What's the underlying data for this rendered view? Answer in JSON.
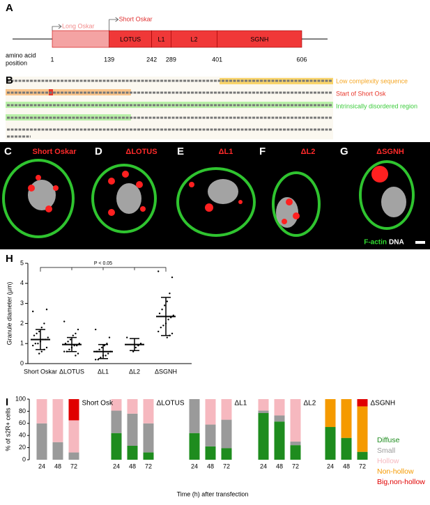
{
  "panel_labels": [
    "A",
    "B",
    "C",
    "D",
    "E",
    "F",
    "G",
    "H",
    "I"
  ],
  "domain_map": {
    "isoforms": [
      "Long Oskar",
      "Short Oskar"
    ],
    "domains": [
      "LOTUS",
      "L1",
      "L2",
      "SGNH"
    ],
    "positions": [
      1,
      139,
      242,
      289,
      401,
      606
    ],
    "position_label": [
      "amino acid",
      "position"
    ]
  },
  "sequence_legend": [
    {
      "label": "Low complexity sequence",
      "color": "#f5a623"
    },
    {
      "label": "Start of Short Osk",
      "color": "#e8362a"
    },
    {
      "label": "Intrinsically disordered region",
      "color": "#3ccc3c"
    }
  ],
  "micrographs": {
    "titles": [
      "Short Oskar",
      "ΔLOTUS",
      "ΔL1",
      "ΔL2",
      "ΔSGNH"
    ],
    "stains": [
      "F-actin",
      "DNA"
    ]
  },
  "chart_data": [
    {
      "type": "scatter",
      "categories": [
        "Short Oskar",
        "ΔLOTUS",
        "ΔL1",
        "ΔL2",
        "ΔSGNH"
      ],
      "points": [
        [
          2.6,
          2.7,
          2.0,
          1.8,
          1.6,
          1.5,
          1.4,
          1.3,
          1.2,
          1.2,
          1.1,
          1.0,
          1.0,
          0.9,
          0.8,
          0.7,
          0.6,
          0.5
        ],
        [
          2.1,
          1.7,
          1.5,
          1.4,
          1.2,
          1.1,
          1.0,
          1.0,
          0.9,
          0.9,
          0.8,
          0.7,
          0.6,
          0.6,
          0.5,
          0.4
        ],
        [
          1.7,
          1.3,
          1.0,
          0.9,
          0.8,
          0.7,
          0.6,
          0.6,
          0.5,
          0.4,
          0.4,
          0.3,
          0.2,
          0.2
        ],
        [
          1.3,
          1.0,
          0.9,
          0.8,
          0.6
        ],
        [
          4.6,
          4.3,
          3.5,
          3.1,
          2.9,
          2.7,
          2.5,
          2.4,
          2.3,
          2.2,
          2.0,
          1.9,
          1.8,
          1.6,
          1.5,
          1.4,
          1.3
        ]
      ],
      "means": [
        1.2,
        0.95,
        0.6,
        0.95,
        2.35
      ],
      "sd": [
        0.5,
        0.35,
        0.35,
        0.3,
        0.95
      ],
      "ylabel": "Granule diameter (μm)",
      "ylim": [
        0,
        5
      ],
      "yticks": [
        0,
        1,
        2,
        3,
        4,
        5
      ],
      "annotation": "P < 0.05",
      "color": "#000000"
    },
    {
      "type": "bar",
      "stacked": true,
      "groups": [
        "Short Osk",
        "ΔLOTUS",
        "ΔL1",
        "ΔL2",
        "ΔSGNH"
      ],
      "categories": [
        "24",
        "48",
        "72",
        "24",
        "48",
        "72",
        "24",
        "48",
        "72",
        "24",
        "48",
        "72",
        "24",
        "48",
        "72"
      ],
      "series": [
        {
          "name": "Diffuse",
          "color": "#1e8c1e",
          "values": [
            0,
            0,
            0,
            44,
            23,
            12,
            44,
            22,
            19,
            77,
            63,
            24,
            54,
            36,
            13
          ]
        },
        {
          "name": "Small",
          "color": "#9a9a9a",
          "values": [
            60,
            29,
            12,
            37,
            53,
            48,
            56,
            36,
            47,
            4,
            10,
            6,
            0,
            0,
            0
          ]
        },
        {
          "name": "Hollow",
          "color": "#f6b8bf",
          "values": [
            40,
            71,
            53,
            19,
            24,
            40,
            0,
            42,
            34,
            19,
            27,
            70,
            0,
            0,
            0
          ]
        },
        {
          "name": "Non-hollow",
          "color": "#f59a00",
          "values": [
            0,
            0,
            0,
            0,
            0,
            0,
            0,
            0,
            0,
            0,
            0,
            0,
            46,
            64,
            75
          ]
        },
        {
          "name": "Big,non-hollow",
          "color": "#e00000",
          "values": [
            0,
            0,
            35,
            0,
            0,
            0,
            0,
            0,
            0,
            0,
            0,
            0,
            0,
            0,
            12
          ]
        }
      ],
      "ylabel": "% of s2R+ cells",
      "xlabel": "Time (h) after transfection",
      "ylim": [
        0,
        100
      ],
      "yticks": [
        0,
        20,
        40,
        60,
        80,
        100
      ]
    }
  ]
}
